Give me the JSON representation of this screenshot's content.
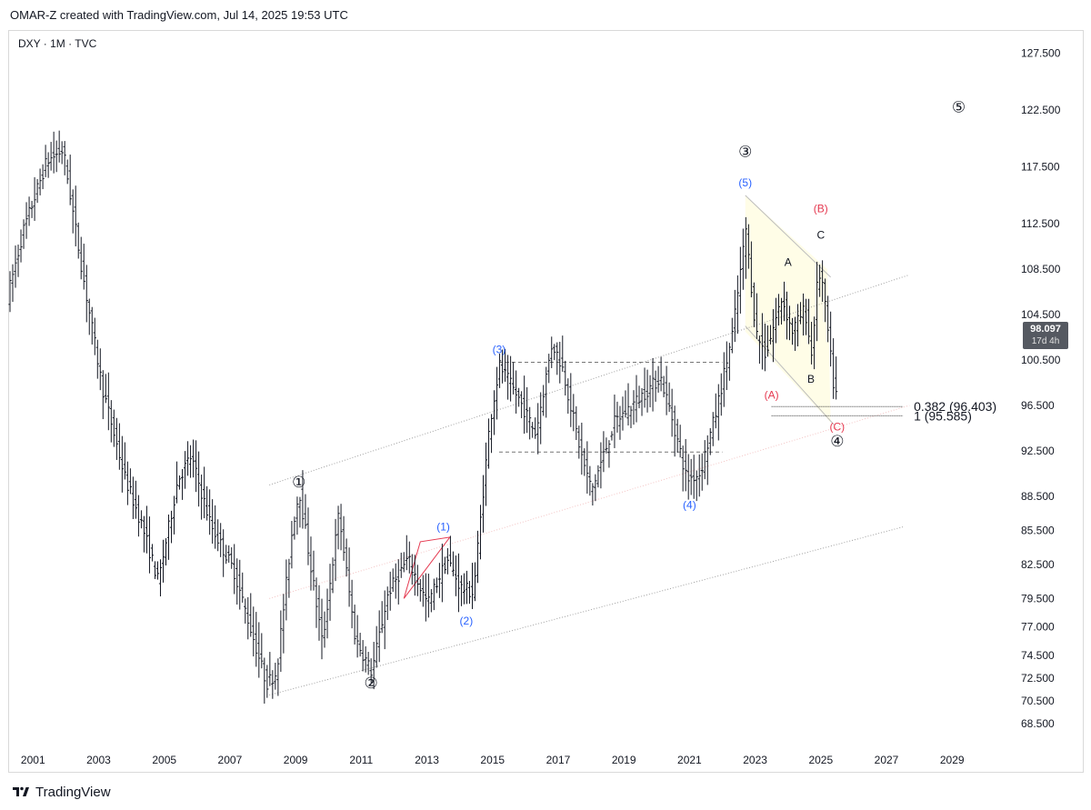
{
  "header": {
    "attribution": "OMAR-Z created with TradingView.com, Jul 14, 2025 19:53 UTC"
  },
  "symbol": {
    "label": "DXY · 1M · TVC"
  },
  "footer": {
    "brand": "TradingView"
  },
  "price_tag": {
    "value": "98.097",
    "time": "17d 4h"
  },
  "colors": {
    "bars": "#131722",
    "wave_blue": "#2962ff",
    "wave_red": "#e53950",
    "channel_line": "#9e9e9e",
    "box_fill": "#fffde7",
    "red_triangle": "#e53950"
  },
  "chart_data": {
    "type": "ohlc",
    "symbol": "DXY",
    "timeframe": "1M",
    "source": "TVC",
    "x_range": [
      2000.3,
      2030.6
    ],
    "y_range": [
      67.2,
      129.0
    ],
    "y_ticks": [
      68.5,
      70.5,
      72.5,
      74.5,
      77.0,
      79.5,
      82.5,
      85.5,
      88.5,
      92.5,
      96.5,
      100.5,
      104.5,
      108.5,
      112.5,
      117.5,
      122.5,
      127.5
    ],
    "y_tick_labels": [
      "68.500",
      "70.500",
      "72.500",
      "74.500",
      "77.000",
      "79.500",
      "82.500",
      "85.500",
      "88.500",
      "92.500",
      "96.500",
      "100.500",
      "104.500",
      "108.500",
      "112.500",
      "117.500",
      "122.500",
      "127.500"
    ],
    "x_ticks": [
      2001,
      2003,
      2005,
      2007,
      2009,
      2011,
      2013,
      2015,
      2017,
      2019,
      2021,
      2023,
      2025,
      2027,
      2029
    ],
    "x_tick_labels": [
      "2001",
      "2003",
      "2005",
      "2007",
      "2009",
      "2011",
      "2013",
      "2015",
      "2017",
      "2019",
      "2021",
      "2023",
      "2025",
      "2027",
      "2029"
    ],
    "price_path": [
      [
        2000.3,
        106
      ],
      [
        2000.8,
        112
      ],
      [
        2001.5,
        118
      ],
      [
        2002.0,
        119
      ],
      [
        2002.6,
        108
      ],
      [
        2003.2,
        98
      ],
      [
        2003.9,
        90
      ],
      [
        2004.4,
        86
      ],
      [
        2004.9,
        81
      ],
      [
        2005.5,
        90
      ],
      [
        2005.9,
        92
      ],
      [
        2006.5,
        86
      ],
      [
        2007.2,
        82
      ],
      [
        2007.8,
        76
      ],
      [
        2008.2,
        72
      ],
      [
        2008.5,
        73
      ],
      [
        2009.0,
        86
      ],
      [
        2009.2,
        89
      ],
      [
        2009.9,
        75.5
      ],
      [
        2010.4,
        87
      ],
      [
        2010.9,
        76
      ],
      [
        2011.4,
        73
      ],
      [
        2011.9,
        80
      ],
      [
        2012.5,
        83
      ],
      [
        2013.1,
        79
      ],
      [
        2013.7,
        83
      ],
      [
        2014.1,
        80.5
      ],
      [
        2014.5,
        80
      ],
      [
        2015.0,
        95
      ],
      [
        2015.3,
        100
      ],
      [
        2015.9,
        97
      ],
      [
        2016.4,
        94
      ],
      [
        2016.9,
        102
      ],
      [
        2017.2,
        100
      ],
      [
        2017.8,
        92
      ],
      [
        2018.1,
        89
      ],
      [
        2018.8,
        95
      ],
      [
        2019.5,
        97
      ],
      [
        2020.2,
        99
      ],
      [
        2020.5,
        96
      ],
      [
        2021.0,
        90
      ],
      [
        2021.4,
        90.5
      ],
      [
        2021.9,
        96
      ],
      [
        2022.4,
        103
      ],
      [
        2022.8,
        112
      ],
      [
        2023.1,
        103
      ],
      [
        2023.4,
        101
      ],
      [
        2023.9,
        106
      ],
      [
        2024.2,
        103
      ],
      [
        2024.6,
        105
      ],
      [
        2024.8,
        101
      ],
      [
        2025.0,
        108
      ],
      [
        2025.1,
        108
      ],
      [
        2025.3,
        103
      ],
      [
        2025.5,
        97.5
      ]
    ],
    "levels": [
      {
        "label": "0.382 (96.403)",
        "value": 96.403
      },
      {
        "label": "1 (95.585)",
        "value": 95.585
      }
    ],
    "wave_labels": [
      {
        "text": "①",
        "x": 2009.1,
        "y": 89.7,
        "color": "black"
      },
      {
        "text": "②",
        "x": 2011.3,
        "y": 72.0,
        "color": "black"
      },
      {
        "text": "③",
        "x": 2022.7,
        "y": 118.8,
        "color": "black"
      },
      {
        "text": "④",
        "x": 2025.5,
        "y": 93.3,
        "color": "black"
      },
      {
        "text": "⑤",
        "x": 2029.2,
        "y": 122.7,
        "color": "black"
      },
      {
        "text": "(1)",
        "x": 2013.5,
        "y": 85.9,
        "color": "blue"
      },
      {
        "text": "(2)",
        "x": 2014.2,
        "y": 77.6,
        "color": "blue"
      },
      {
        "text": "(3)",
        "x": 2015.2,
        "y": 101.5,
        "color": "blue"
      },
      {
        "text": "(4)",
        "x": 2021.0,
        "y": 87.8,
        "color": "blue"
      },
      {
        "text": "(5)",
        "x": 2022.7,
        "y": 116.2,
        "color": "blue"
      },
      {
        "text": "(A)",
        "x": 2023.5,
        "y": 97.5,
        "color": "red"
      },
      {
        "text": "(B)",
        "x": 2025.0,
        "y": 113.9,
        "color": "red"
      },
      {
        "text": "(C)",
        "x": 2025.5,
        "y": 94.7,
        "color": "red"
      },
      {
        "text": "A",
        "x": 2024.0,
        "y": 109.2,
        "color": "black"
      },
      {
        "text": "B",
        "x": 2024.7,
        "y": 98.9,
        "color": "black"
      },
      {
        "text": "C",
        "x": 2025.0,
        "y": 111.6,
        "color": "black"
      }
    ]
  }
}
